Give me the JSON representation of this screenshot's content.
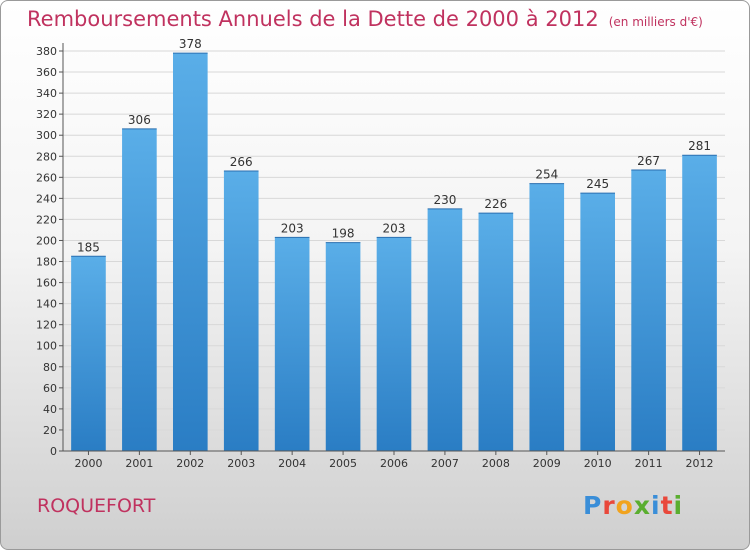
{
  "title": "Remboursements Annuels de la Dette de 2000 à 2012",
  "unit": "(en milliers d'€)",
  "commune": "ROQUEFORT",
  "logo": {
    "text": "Proxiti",
    "colors": [
      "#3a8ed8",
      "#e9483b",
      "#f1a31e",
      "#5aae2f",
      "#3a8ed8",
      "#e9483b",
      "#5aae2f"
    ]
  },
  "chart_data": {
    "type": "bar",
    "categories": [
      "2000",
      "2001",
      "2002",
      "2003",
      "2004",
      "2005",
      "2006",
      "2007",
      "2008",
      "2009",
      "2010",
      "2011",
      "2012"
    ],
    "values": [
      185,
      306,
      378,
      266,
      203,
      198,
      203,
      230,
      226,
      254,
      245,
      267,
      281
    ],
    "ylim": [
      0,
      380
    ],
    "ytick_step": 20,
    "grid": true,
    "bar_color_top": "#5aaee8",
    "bar_color_bottom": "#2a7dc4"
  }
}
